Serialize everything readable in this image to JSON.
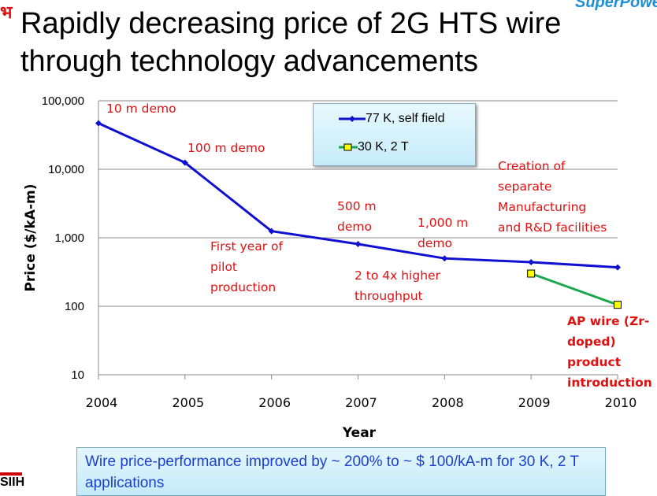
{
  "title": "Rapidly decreasing price of 2G HTS wire through technology advancements",
  "logos": {
    "top_left": "भ",
    "top_right": "SuperPower",
    "bottom_left": "SIIH"
  },
  "footer": "Wire price-performance improved by ~ 200% to ~ $ 100/kA-m for 30 K, 2 T applications",
  "chart_data": {
    "type": "line",
    "x": [
      2004,
      2005,
      2006,
      2007,
      2008,
      2009,
      2010
    ],
    "xlabel": "Year",
    "ylabel": "Price ($/kA-m)",
    "yscale": "log",
    "ylim": [
      10,
      100000
    ],
    "yticks": [
      "100,000",
      "10,000",
      "1,000",
      "100",
      "10"
    ],
    "grid": "horizontal",
    "legend": "top-center",
    "series": [
      {
        "name": "77 K, self field",
        "color": "#1010d0",
        "marker": "diamond",
        "x": [
          2004,
          2005,
          2006,
          2007,
          2008,
          2009,
          2010
        ],
        "values": [
          47000,
          12500,
          1250,
          810,
          500,
          440,
          370
        ]
      },
      {
        "name": "30 K, 2 T",
        "color": "#1aa64a",
        "marker": "square",
        "x": [
          2009,
          2010
        ],
        "values": [
          300,
          105
        ]
      }
    ],
    "annotations": [
      "10 m demo",
      "100 m demo",
      "First year of pilot production",
      "500 m demo",
      "2 to 4x higher throughput",
      "1,000 m demo",
      "Creation of separate Manufacturing and R&D facilities",
      "AP wire (Zr-doped) product introduction"
    ]
  }
}
